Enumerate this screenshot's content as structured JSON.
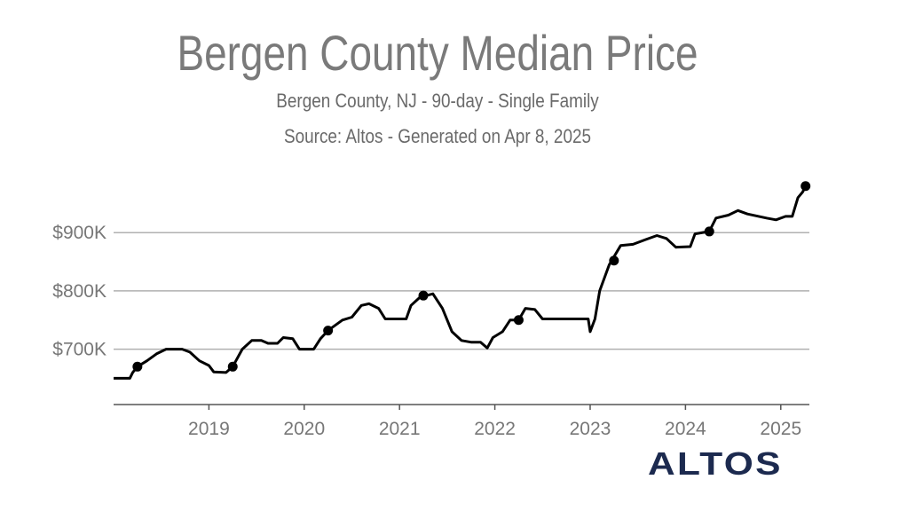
{
  "chart_data": {
    "type": "line",
    "title": "Bergen County Median Price",
    "subtitle": "Bergen County, NJ - 90-day - Single Family",
    "source": "Source: Altos - Generated on Apr 8, 2025",
    "xlabel": "",
    "ylabel": "",
    "x_ticks": [
      "2019",
      "2020",
      "2021",
      "2022",
      "2023",
      "2024",
      "2025"
    ],
    "y_ticks": [
      "$700K",
      "$800K",
      "$900K"
    ],
    "y_tick_values": [
      700,
      800,
      900
    ],
    "xlim": [
      2018.0,
      2025.3
    ],
    "ylim": [
      605,
      1010
    ],
    "y_unit": "thousands of USD",
    "grid": true,
    "line_color": "#000000",
    "series": [
      {
        "values": [
          [
            2018.0,
            650
          ],
          [
            2018.17,
            650
          ],
          [
            2018.2,
            660
          ],
          [
            2018.25,
            670
          ],
          [
            2018.35,
            680
          ],
          [
            2018.45,
            692
          ],
          [
            2018.55,
            700
          ],
          [
            2018.72,
            700
          ],
          [
            2018.8,
            695
          ],
          [
            2018.9,
            680
          ],
          [
            2019.0,
            672
          ],
          [
            2019.05,
            661
          ],
          [
            2019.18,
            660
          ],
          [
            2019.25,
            670
          ],
          [
            2019.35,
            700
          ],
          [
            2019.45,
            715
          ],
          [
            2019.55,
            715
          ],
          [
            2019.62,
            710
          ],
          [
            2019.72,
            710
          ],
          [
            2019.78,
            720
          ],
          [
            2019.88,
            718
          ],
          [
            2019.95,
            700
          ],
          [
            2020.1,
            700
          ],
          [
            2020.17,
            718
          ],
          [
            2020.25,
            732
          ],
          [
            2020.4,
            750
          ],
          [
            2020.5,
            755
          ],
          [
            2020.6,
            775
          ],
          [
            2020.68,
            778
          ],
          [
            2020.78,
            770
          ],
          [
            2020.85,
            752
          ],
          [
            2021.07,
            752
          ],
          [
            2021.12,
            775
          ],
          [
            2021.22,
            790
          ],
          [
            2021.28,
            792
          ],
          [
            2021.35,
            795
          ],
          [
            2021.45,
            770
          ],
          [
            2021.55,
            730
          ],
          [
            2021.65,
            715
          ],
          [
            2021.75,
            712
          ],
          [
            2021.85,
            712
          ],
          [
            2021.92,
            702
          ],
          [
            2021.98,
            720
          ],
          [
            2022.08,
            730
          ],
          [
            2022.16,
            750
          ],
          [
            2022.25,
            750
          ],
          [
            2022.32,
            770
          ],
          [
            2022.42,
            768
          ],
          [
            2022.5,
            752
          ],
          [
            2022.8,
            752
          ],
          [
            2022.98,
            752
          ],
          [
            2023.0,
            730
          ],
          [
            2023.05,
            752
          ],
          [
            2023.1,
            800
          ],
          [
            2023.2,
            845
          ],
          [
            2023.32,
            878
          ],
          [
            2023.45,
            880
          ],
          [
            2023.58,
            888
          ],
          [
            2023.7,
            895
          ],
          [
            2023.8,
            890
          ],
          [
            2023.9,
            875
          ],
          [
            2024.05,
            876
          ],
          [
            2024.1,
            898
          ],
          [
            2024.25,
            902
          ],
          [
            2024.32,
            925
          ],
          [
            2024.45,
            930
          ],
          [
            2024.55,
            938
          ],
          [
            2024.65,
            932
          ],
          [
            2024.85,
            925
          ],
          [
            2024.95,
            922
          ],
          [
            2025.05,
            928
          ],
          [
            2025.12,
            928
          ],
          [
            2025.18,
            960
          ],
          [
            2025.23,
            970
          ],
          [
            2025.26,
            980
          ]
        ]
      }
    ],
    "markers": [
      [
        2018.25,
        670
      ],
      [
        2019.25,
        670
      ],
      [
        2020.25,
        732
      ],
      [
        2021.25,
        792
      ],
      [
        2022.25,
        750
      ],
      [
        2023.25,
        852
      ],
      [
        2024.25,
        902
      ],
      [
        2025.26,
        980
      ]
    ]
  },
  "branding": {
    "logo_text": "ALTOS"
  }
}
